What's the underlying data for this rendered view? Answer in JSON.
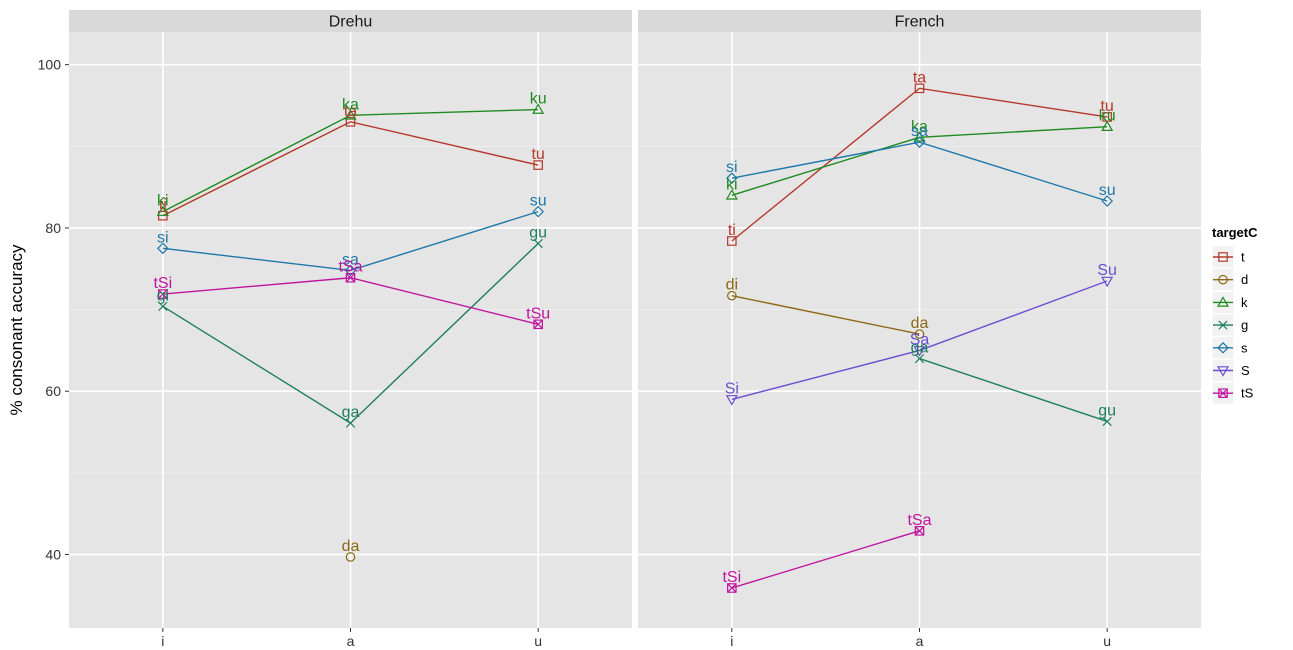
{
  "chart_data": {
    "type": "line",
    "ylabel": "% consonant accuracy",
    "xlabel": "",
    "x_categories": [
      "i",
      "a",
      "u"
    ],
    "ylim": [
      31,
      104
    ],
    "y_ticks": [
      40,
      60,
      80,
      100
    ],
    "grid": true,
    "legend": {
      "title": "targetC",
      "position": "right",
      "entries": [
        {
          "key": "t",
          "label": "t",
          "color": "#B5382B",
          "marker": "square"
        },
        {
          "key": "d",
          "label": "d",
          "color": "#8B6914",
          "marker": "circle"
        },
        {
          "key": "k",
          "label": "k",
          "color": "#1F8A1F",
          "marker": "triangle"
        },
        {
          "key": "g",
          "label": "g",
          "color": "#1E7F5E",
          "marker": "x"
        },
        {
          "key": "s",
          "label": "s",
          "color": "#1E78A8",
          "marker": "diamond"
        },
        {
          "key": "S",
          "label": "S",
          "color": "#6A4FD0",
          "marker": "triangle-down"
        },
        {
          "key": "tS",
          "label": "tS",
          "color": "#C0149E",
          "marker": "boxed-x"
        }
      ]
    },
    "panels": [
      {
        "title": "Drehu",
        "series": [
          {
            "key": "t",
            "points": [
              {
                "x": "i",
                "y": 81.5,
                "label": "ti"
              },
              {
                "x": "a",
                "y": 93.0,
                "label": "ta"
              },
              {
                "x": "u",
                "y": 87.7,
                "label": "tu"
              }
            ]
          },
          {
            "key": "d",
            "points": [
              {
                "x": "a",
                "y": 39.7,
                "label": "da"
              }
            ]
          },
          {
            "key": "k",
            "points": [
              {
                "x": "i",
                "y": 82.0,
                "label": "ki"
              },
              {
                "x": "a",
                "y": 93.8,
                "label": "ka"
              },
              {
                "x": "u",
                "y": 94.5,
                "label": "ku"
              }
            ]
          },
          {
            "key": "g",
            "points": [
              {
                "x": "i",
                "y": 70.4,
                "label": "gi"
              },
              {
                "x": "a",
                "y": 56.1,
                "label": "ga"
              },
              {
                "x": "u",
                "y": 78.1,
                "label": "gu"
              }
            ]
          },
          {
            "key": "s",
            "points": [
              {
                "x": "i",
                "y": 77.5,
                "label": "si"
              },
              {
                "x": "a",
                "y": 74.8,
                "label": "sa"
              },
              {
                "x": "u",
                "y": 82.0,
                "label": "su"
              }
            ]
          },
          {
            "key": "tS",
            "points": [
              {
                "x": "i",
                "y": 71.9,
                "label": "tSi"
              },
              {
                "x": "a",
                "y": 73.9,
                "label": "tSa"
              },
              {
                "x": "u",
                "y": 68.2,
                "label": "tSu"
              }
            ]
          }
        ]
      },
      {
        "title": "French",
        "series": [
          {
            "key": "t",
            "points": [
              {
                "x": "i",
                "y": 78.4,
                "label": "ti"
              },
              {
                "x": "a",
                "y": 97.1,
                "label": "ta"
              },
              {
                "x": "u",
                "y": 93.6,
                "label": "tu"
              }
            ]
          },
          {
            "key": "d",
            "points": [
              {
                "x": "i",
                "y": 71.7,
                "label": "di"
              },
              {
                "x": "a",
                "y": 67.0,
                "label": "da"
              }
            ]
          },
          {
            "key": "k",
            "points": [
              {
                "x": "i",
                "y": 84.0,
                "label": "ki"
              },
              {
                "x": "a",
                "y": 91.1,
                "label": "ka"
              },
              {
                "x": "u",
                "y": 92.4,
                "label": "ku"
              }
            ]
          },
          {
            "key": "g",
            "points": [
              {
                "x": "a",
                "y": 64.0,
                "label": "ga"
              },
              {
                "x": "u",
                "y": 56.3,
                "label": "gu"
              }
            ]
          },
          {
            "key": "s",
            "points": [
              {
                "x": "i",
                "y": 86.1,
                "label": "si"
              },
              {
                "x": "a",
                "y": 90.5,
                "label": "sa"
              },
              {
                "x": "u",
                "y": 83.3,
                "label": "su"
              }
            ]
          },
          {
            "key": "S",
            "points": [
              {
                "x": "i",
                "y": 59.0,
                "label": "Si"
              },
              {
                "x": "a",
                "y": 65.0,
                "label": "Sa"
              },
              {
                "x": "u",
                "y": 73.5,
                "label": "Su"
              }
            ]
          },
          {
            "key": "tS",
            "points": [
              {
                "x": "i",
                "y": 35.9,
                "label": "tSi"
              },
              {
                "x": "a",
                "y": 42.9,
                "label": "tSa"
              }
            ]
          }
        ]
      }
    ]
  }
}
